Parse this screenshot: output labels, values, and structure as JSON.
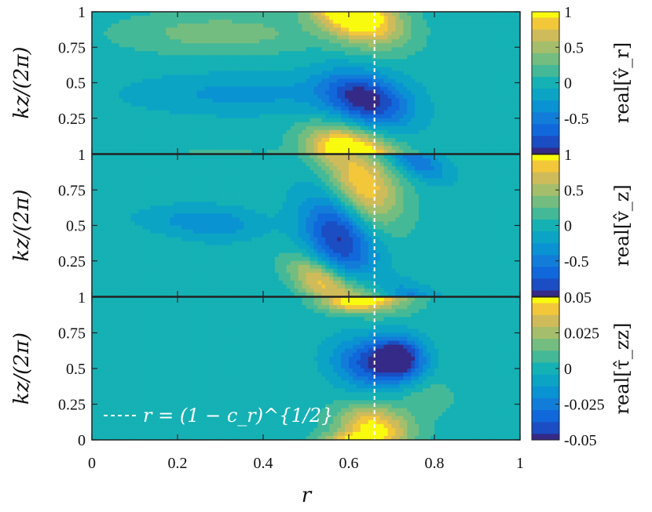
{
  "chart_data": [
    {
      "type": "heatmap",
      "panel": "top",
      "ylabel": "kz/(2π)",
      "yticks": [
        "1",
        "0.75",
        "0.5",
        "0.25"
      ],
      "colorbar_label": "real[v̂_r]",
      "colorbar_ticks": [
        "1",
        "0.5",
        "0",
        "-0.5"
      ],
      "clim": [
        -1,
        1
      ],
      "xlim": [
        0,
        1
      ],
      "ylim": [
        0,
        1
      ],
      "blobs": [
        {
          "r": 0.63,
          "z": 0.95,
          "amp": 1.0,
          "sr": 0.07,
          "sz": 0.13,
          "tilt": -0.6
        },
        {
          "r": 0.64,
          "z": 0.38,
          "amp": -1.0,
          "sr": 0.07,
          "sz": 0.13,
          "tilt": -0.6
        },
        {
          "r": 0.58,
          "z": 0.05,
          "amp": 0.6,
          "sr": 0.06,
          "sz": 0.1,
          "tilt": -0.6
        },
        {
          "r": 0.3,
          "z": 0.85,
          "amp": 0.35,
          "sr": 0.16,
          "sz": 0.1,
          "tilt": 0.0
        },
        {
          "r": 0.35,
          "z": 0.42,
          "amp": -0.3,
          "sr": 0.18,
          "sz": 0.1,
          "tilt": 0.0
        }
      ]
    },
    {
      "type": "heatmap",
      "panel": "middle",
      "ylabel": "kz/(2π)",
      "yticks": [
        "1",
        "0.75",
        "0.5",
        "0.25"
      ],
      "colorbar_label": "real[v̂_z]",
      "colorbar_ticks": [
        "1",
        "0.5",
        "0",
        "-0.5"
      ],
      "clim": [
        -1,
        1
      ],
      "xlim": [
        0,
        1
      ],
      "ylim": [
        0,
        1
      ],
      "blobs": [
        {
          "r": 0.63,
          "z": 0.78,
          "amp": 1.0,
          "sr": 0.06,
          "sz": 0.2,
          "tilt": -1.1
        },
        {
          "r": 0.58,
          "z": 0.42,
          "amp": -1.0,
          "sr": 0.06,
          "sz": 0.22,
          "tilt": -1.1
        },
        {
          "r": 0.53,
          "z": 0.12,
          "amp": 0.8,
          "sr": 0.05,
          "sz": 0.1,
          "tilt": -1.1
        },
        {
          "r": 0.76,
          "z": 0.95,
          "amp": -0.55,
          "sr": 0.05,
          "sz": 0.08,
          "tilt": -1.1
        },
        {
          "r": 0.3,
          "z": 0.5,
          "amp": -0.3,
          "sr": 0.07,
          "sz": 0.08,
          "tilt": 0.0
        },
        {
          "r": 0.2,
          "z": 0.55,
          "amp": -0.2,
          "sr": 0.08,
          "sz": 0.07,
          "tilt": 0.0
        }
      ]
    },
    {
      "type": "heatmap",
      "panel": "bottom",
      "ylabel": "kz/(2π)",
      "yticks": [
        "1",
        "0.75",
        "0.5",
        "0.25",
        "0"
      ],
      "colorbar_label": "real[τ̂_zz]",
      "colorbar_ticks": [
        "0.05",
        "0.025",
        "0",
        "-0.025",
        "-0.05"
      ],
      "clim": [
        -0.05,
        0.05
      ],
      "xlim": [
        0,
        1
      ],
      "ylim": [
        0,
        1
      ],
      "xticks": [
        "0",
        "0.2",
        "0.4",
        "0.6",
        "0.8",
        "1"
      ],
      "xlabel": "r",
      "legend": "r = (1 − c_r)^{1/2}",
      "blobs": [
        {
          "r": 0.65,
          "z": 0.53,
          "amp": -0.04,
          "sr": 0.06,
          "sz": 0.12,
          "tilt": -0.3
        },
        {
          "r": 0.72,
          "z": 0.58,
          "amp": -0.05,
          "sr": 0.04,
          "sz": 0.1,
          "tilt": -0.3
        },
        {
          "r": 0.66,
          "z": 0.08,
          "amp": 0.05,
          "sr": 0.06,
          "sz": 0.11,
          "tilt": -0.3
        },
        {
          "r": 0.6,
          "z": 0.97,
          "amp": 0.04,
          "sr": 0.05,
          "sz": 0.05,
          "tilt": 0.0
        },
        {
          "r": 0.78,
          "z": 0.3,
          "amp": 0.01,
          "sr": 0.05,
          "sz": 0.1,
          "tilt": 0.0
        }
      ]
    }
  ],
  "reference_line_r": 0.66,
  "colors": {
    "dashed_line": "#ffffff",
    "axis": "#222222"
  }
}
